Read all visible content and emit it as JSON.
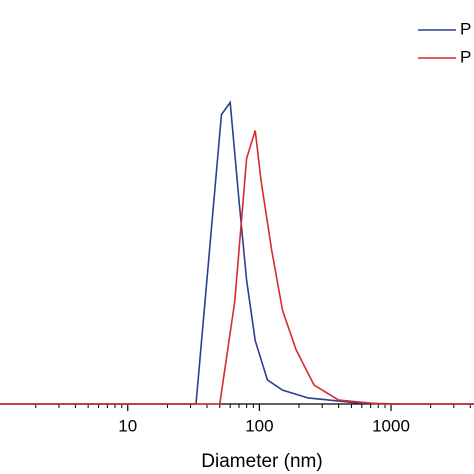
{
  "chart_data": {
    "type": "line",
    "x_label": "Diameter (nm)",
    "log_x": true,
    "xlim": [
      1.07,
      4270
    ],
    "ylim": [
      0,
      134
    ],
    "xticks": [
      10,
      100,
      1000
    ],
    "xminorticks": [
      2,
      3,
      4,
      5,
      6,
      7,
      8,
      9,
      20,
      30,
      40,
      50,
      60,
      70,
      80,
      90,
      200,
      300,
      400,
      500,
      600,
      700,
      800,
      900,
      2000,
      3000,
      4000
    ],
    "legend": "upper right",
    "series": [
      {
        "name": "P",
        "color": "#2b3f8f",
        "x": [
          1.07,
          33,
          51.5,
          60,
          70,
          80,
          93,
          115,
          150,
          235,
          570,
          1130,
          4270
        ],
        "values": [
          0,
          0,
          96,
          100,
          67.5,
          41,
          21,
          8,
          4.6,
          2,
          0.3,
          0,
          0
        ]
      },
      {
        "name": "P",
        "color": "#d62b2b",
        "x": [
          1.07,
          50,
          65,
          80,
          93,
          103,
          124,
          150,
          190,
          260,
          400,
          830,
          4270
        ],
        "values": [
          0,
          0,
          34,
          81.5,
          90.7,
          74,
          51,
          31,
          18,
          6.3,
          1.3,
          0,
          0
        ]
      }
    ]
  }
}
